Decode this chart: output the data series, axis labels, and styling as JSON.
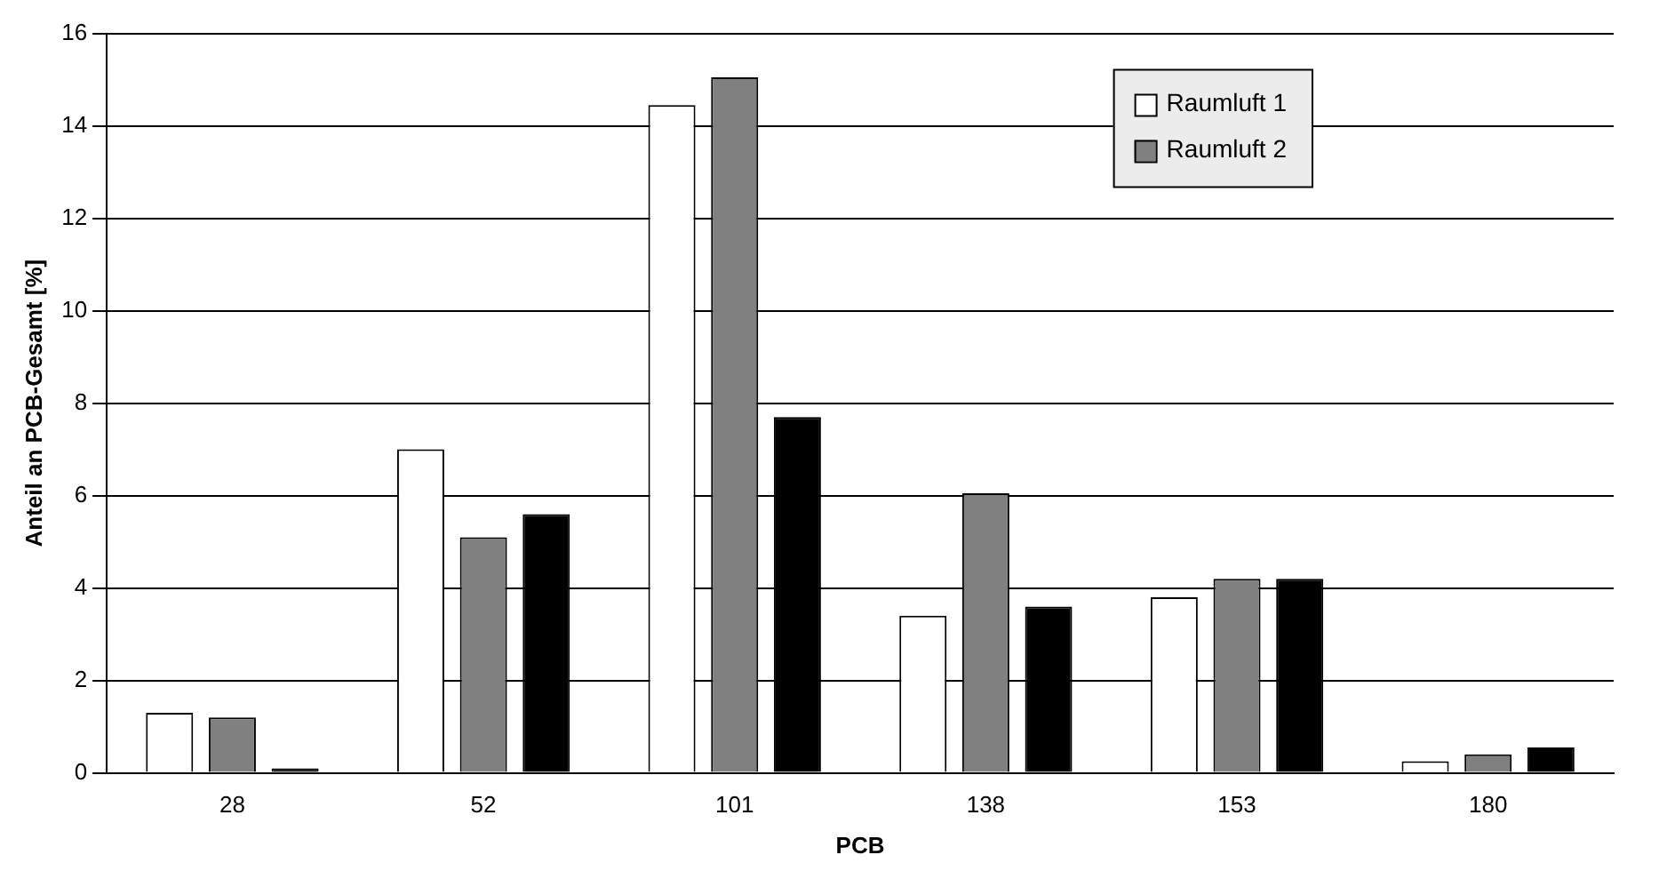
{
  "chart_data": {
    "type": "bar",
    "xlabel": "PCB",
    "ylabel": "Anteil an PCB-Gesamt [%]",
    "categories": [
      "28",
      "52",
      "101",
      "138",
      "153",
      "180"
    ],
    "series": [
      {
        "name": "Raumluft 1",
        "color": "#ffffff",
        "values": [
          1.3,
          7.0,
          14.45,
          3.4,
          3.8,
          0.25
        ]
      },
      {
        "name": "Raumluft 2",
        "color": "#808080",
        "values": [
          1.2,
          5.1,
          15.05,
          6.05,
          4.2,
          0.4
        ]
      },
      {
        "color": "#000000",
        "values": [
          0.1,
          5.6,
          7.7,
          3.6,
          4.2,
          0.55
        ]
      }
    ],
    "ylim": [
      0,
      16
    ],
    "yticks": [
      0,
      2,
      4,
      6,
      8,
      10,
      12,
      14,
      16
    ],
    "grid": "y",
    "legend": "top right"
  }
}
